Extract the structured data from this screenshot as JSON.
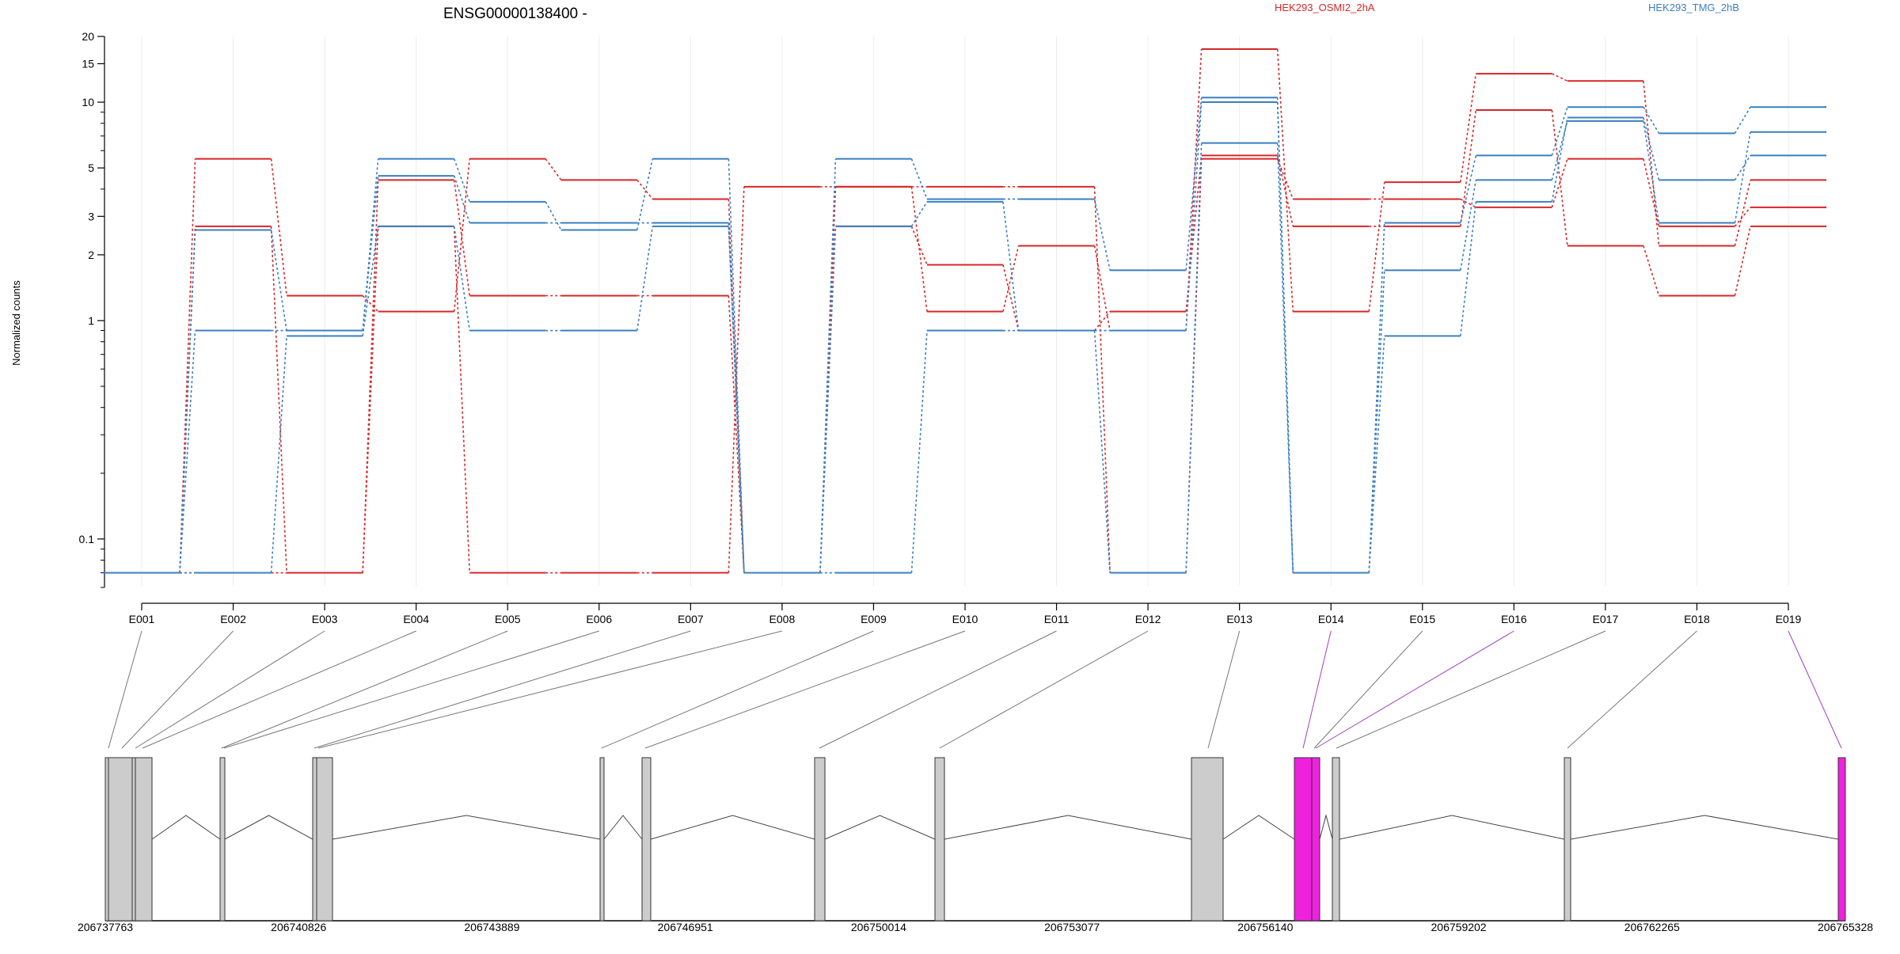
{
  "chart_data": {
    "type": "line",
    "title": "ENSG00000138400 -",
    "ylabel": "Normalized counts",
    "yscale": "log",
    "ylim": [
      0.06,
      20
    ],
    "yticks": [
      "0.1",
      "1",
      "2",
      "3",
      "5",
      "10",
      "15",
      "20"
    ],
    "legend": [
      {
        "name": "HEK293_OSMI2_2hA",
        "color": "#d62728"
      },
      {
        "name": "HEK293_TMG_2hB",
        "color": "#3a7fc0"
      }
    ],
    "grid": "vertical",
    "categories": [
      "E001",
      "E002",
      "E003",
      "E004",
      "E005",
      "E006",
      "E007",
      "E008",
      "E009",
      "E010",
      "E011",
      "E012",
      "E013",
      "E014",
      "E015",
      "E016",
      "E017",
      "E018",
      "E019"
    ],
    "series": [
      {
        "group": 0,
        "values": [
          0.07,
          5.5,
          1.3,
          1.1,
          5.5,
          4.4,
          3.6,
          0.07,
          2.7,
          1.8,
          0.9,
          1.1,
          5.7,
          2.7,
          2.7,
          9.2,
          2.2,
          1.3,
          2.7
        ]
      },
      {
        "group": 0,
        "values": [
          0.07,
          2.7,
          0.07,
          4.4,
          1.3,
          1.3,
          1.3,
          0.07,
          4.1,
          1.1,
          2.2,
          0.9,
          17.5,
          1.1,
          4.3,
          13.5,
          12.5,
          2.2,
          4.4
        ]
      },
      {
        "group": 0,
        "values": [
          0.07,
          0.07,
          0.07,
          2.7,
          0.07,
          0.07,
          0.07,
          4.1,
          4.1,
          4.1,
          4.1,
          0.07,
          5.5,
          3.6,
          3.6,
          3.3,
          5.5,
          2.7,
          3.3
        ]
      },
      {
        "group": 1,
        "values": [
          0.07,
          2.6,
          0.9,
          5.5,
          3.5,
          2.6,
          5.5,
          0.07,
          5.5,
          3.6,
          3.6,
          1.7,
          10.5,
          0.07,
          2.8,
          5.7,
          9.5,
          7.2,
          9.5
        ]
      },
      {
        "group": 1,
        "values": [
          0.07,
          0.9,
          0.9,
          4.6,
          2.8,
          2.8,
          2.8,
          0.07,
          2.7,
          3.5,
          0.9,
          0.9,
          10.0,
          0.07,
          1.7,
          4.4,
          8.2,
          2.8,
          7.3
        ]
      },
      {
        "group": 1,
        "values": [
          0.07,
          0.07,
          0.85,
          2.7,
          0.9,
          0.9,
          2.7,
          0.07,
          0.07,
          0.9,
          0.9,
          0.07,
          6.5,
          0.07,
          0.85,
          3.5,
          8.5,
          4.4,
          5.7
        ]
      }
    ]
  },
  "gene_model": {
    "coord_ticks": [
      "206737763",
      "206740826",
      "206743889",
      "206746951",
      "206750014",
      "206753077",
      "206756140",
      "206759202",
      "206762265",
      "206765328"
    ],
    "highlight_color": "#ee22dd",
    "exon_color": "#cccccc"
  }
}
